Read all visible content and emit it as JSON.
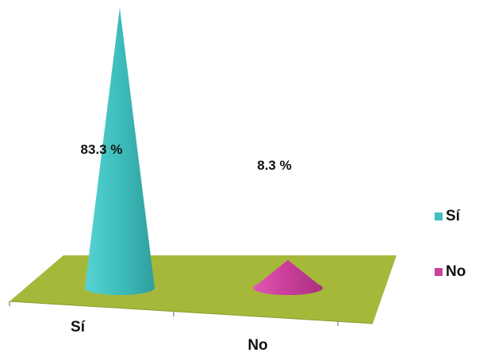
{
  "chart_data": {
    "type": "bar",
    "style": "3d-cone",
    "title": "",
    "xlabel": "",
    "ylabel": "",
    "ylim": [
      0,
      100
    ],
    "categories": [
      "Sí",
      "No"
    ],
    "values": [
      83.3,
      8.3
    ],
    "data_labels": [
      "83.3 %",
      "8.3 %"
    ],
    "colors": [
      "#3fbfbf",
      "#cc3f9c"
    ],
    "floor_color": "#a6b83a",
    "grid": false,
    "legend": {
      "position": "right",
      "entries": [
        {
          "label": "Sí",
          "color": "#3fbfbf"
        },
        {
          "label": "No",
          "color": "#cc3f9c"
        }
      ]
    }
  }
}
